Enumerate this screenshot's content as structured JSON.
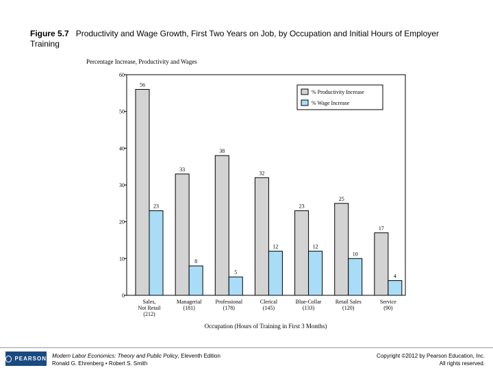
{
  "figure": {
    "label": "Figure 5.7",
    "title": "Productivity and Wage Growth, First Two Years on Job, by Occupation and Initial Hours of Employer Training"
  },
  "footer": {
    "book_title": "Modern Labor Economics: Theory and Public Policy",
    "edition": ", Eleventh Edition",
    "authors": "Ronald G. Ehrenberg • Robert S. Smith",
    "copyright": "Copyright ©2012 by Pearson Education, Inc.",
    "rights": "All rights reserved.",
    "logo_text": "PEARSON"
  },
  "chart_data": {
    "type": "bar",
    "title": "Percentage Increase, Productivity and Wages",
    "xlabel": "Occupation (Hours of Training in First 3 Months)",
    "ylabel": "",
    "ylim": [
      0,
      60
    ],
    "yticks": [
      0,
      10,
      20,
      30,
      40,
      50,
      60
    ],
    "categories": [
      [
        "Sales,",
        "Not Retail",
        "(212)"
      ],
      [
        "Managerial",
        "(181)"
      ],
      [
        "Professional",
        "(178)"
      ],
      [
        "Clerical",
        "(145)"
      ],
      [
        "Blue-Collar",
        "(133)"
      ],
      [
        "Retail Sales",
        "(120)"
      ],
      [
        "Service",
        "(90)"
      ]
    ],
    "series": [
      {
        "name": "% Productivity Increase",
        "color": "#d3d3d3",
        "values": [
          56,
          33,
          38,
          32,
          23,
          25,
          17
        ]
      },
      {
        "name": "% Wage Increase",
        "color": "#a9dcf6",
        "values": [
          23,
          8,
          5,
          12,
          12,
          10,
          4
        ]
      }
    ],
    "legend_position": "top-right"
  }
}
